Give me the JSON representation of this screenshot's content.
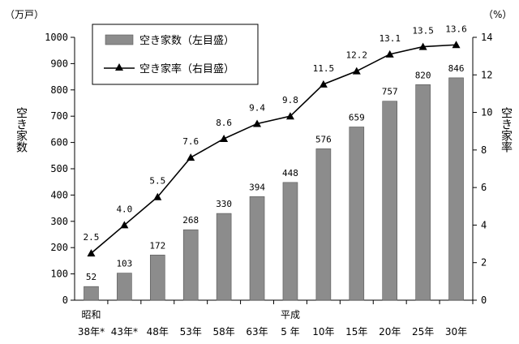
{
  "chart_data": {
    "type": "bar+line",
    "categories": [
      {
        "era": "昭和",
        "label": "38年*"
      },
      {
        "era": "",
        "label": "43年*"
      },
      {
        "era": "",
        "label": "48年"
      },
      {
        "era": "",
        "label": "53年"
      },
      {
        "era": "",
        "label": "58年"
      },
      {
        "era": "",
        "label": "63年"
      },
      {
        "era": "平成",
        "label": "5 年"
      },
      {
        "era": "",
        "label": "10年"
      },
      {
        "era": "",
        "label": "15年"
      },
      {
        "era": "",
        "label": "20年"
      },
      {
        "era": "",
        "label": "25年"
      },
      {
        "era": "",
        "label": "30年"
      }
    ],
    "series": [
      {
        "name": "空き家数（左目盛）",
        "type": "bar",
        "axis": "left",
        "values": [
          52,
          103,
          172,
          268,
          330,
          394,
          448,
          576,
          659,
          757,
          820,
          846
        ],
        "labels": [
          "52",
          "103",
          "172",
          "268",
          "330",
          "394",
          "448",
          "576",
          "659",
          "757",
          "820",
          "846"
        ]
      },
      {
        "name": "空き家率（右目盛）",
        "type": "line",
        "axis": "right",
        "values": [
          2.5,
          4.0,
          5.5,
          7.6,
          8.6,
          9.4,
          9.8,
          11.5,
          12.2,
          13.1,
          13.5,
          13.6
        ],
        "labels": [
          "2.5",
          "4.0",
          "5.5",
          "7.6",
          "8.6",
          "9.4",
          "9.8",
          "11.5",
          "12.2",
          "13.1",
          "13.5",
          "13.6"
        ]
      }
    ],
    "y_left": {
      "unit": "（万戸）",
      "title": "空き家数",
      "min": 0,
      "max": 1000,
      "ticks": [
        "0",
        "100",
        "200",
        "300",
        "400",
        "500",
        "600",
        "700",
        "800",
        "900",
        "1000"
      ]
    },
    "y_right": {
      "unit": "（%）",
      "title": "空き家率",
      "min": 0,
      "max": 14,
      "ticks": [
        "0",
        "2",
        "4",
        "6",
        "8",
        "10",
        "12",
        "14"
      ]
    },
    "legend": {
      "placement": "top-left",
      "bar_label": "空き家数（左目盛）",
      "line_label": "空き家率（右目盛）"
    },
    "grid": false,
    "colors": {
      "bar": "#8c8c8c",
      "line": "#000000"
    }
  }
}
